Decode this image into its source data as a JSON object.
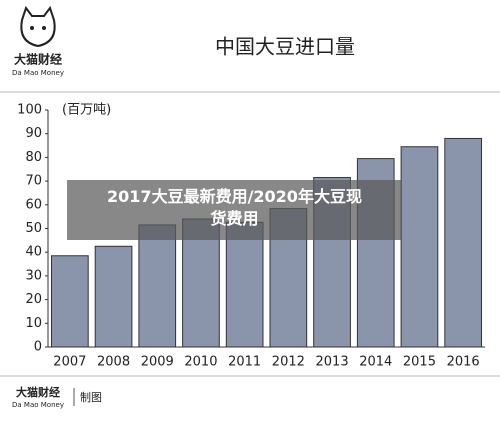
{
  "brand": {
    "name": "大猫财经",
    "sub": "Da Mao Money"
  },
  "chart_data": {
    "type": "bar",
    "title": "中国大豆进口量",
    "y_unit": "(百万吨)",
    "categories": [
      "2007",
      "2008",
      "2009",
      "2010",
      "2011",
      "2012",
      "2013",
      "2014",
      "2015",
      "2016"
    ],
    "values": [
      38.5,
      42.5,
      51.5,
      54,
      52.6,
      58.4,
      71.5,
      79.5,
      84.5,
      88
    ],
    "color": "#8a94ab",
    "ylim": [
      0,
      100
    ],
    "yticks": [
      0,
      10,
      20,
      30,
      40,
      50,
      60,
      70,
      80,
      90,
      100
    ]
  },
  "overlay": [
    "2017大豆最新费用/2020年大豆现",
    "货费用"
  ],
  "footer": {
    "name": "大猫财经",
    "sub": "Da Mao Money",
    "note": "制图"
  }
}
